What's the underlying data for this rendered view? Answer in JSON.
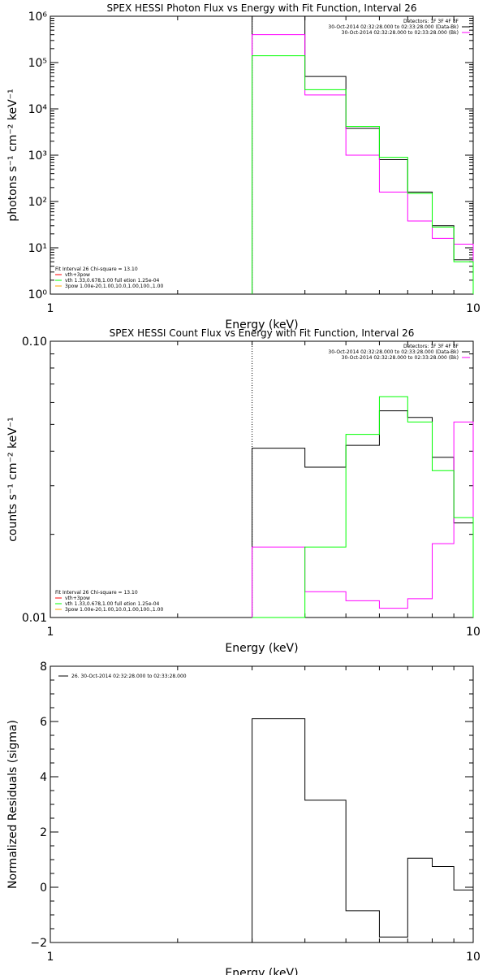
{
  "chart_data": [
    {
      "type": "line",
      "title": "SPEX HESSI Photon Flux vs Energy with Fit Function, Interval 26",
      "xlabel": "Energy (keV)",
      "ylabel": "photons s⁻¹ cm⁻² keV⁻¹",
      "xscale": "log",
      "yscale": "log",
      "xlim": [
        1,
        10
      ],
      "ylim": [
        1,
        1000000
      ],
      "xticks": [
        {
          "v": 1,
          "label": "1"
        },
        {
          "v": 10,
          "label": "10"
        }
      ],
      "yticks": [
        {
          "v": 1,
          "label": "10⁰"
        },
        {
          "v": 10,
          "label": "10¹"
        },
        {
          "v": 100,
          "label": "10²"
        },
        {
          "v": 1000,
          "label": "10³"
        },
        {
          "v": 10000,
          "label": "10⁴"
        },
        {
          "v": 100000,
          "label": "10⁵"
        },
        {
          "v": 1000000,
          "label": "10⁶"
        }
      ],
      "bin_edges": [
        3,
        4,
        5,
        6,
        7,
        8,
        9,
        10
      ],
      "vline": {
        "x": 3,
        "style": "dotted"
      },
      "series": [
        {
          "color": "#000000",
          "values": [
            1000000,
            50000,
            3800,
            800,
            160,
            30,
            5.5
          ]
        },
        {
          "color": "#ff00ff",
          "values": [
            400000,
            20000,
            1000,
            160,
            38,
            16,
            12
          ]
        },
        {
          "color": "#00ff00",
          "values": [
            140000,
            26000,
            4200,
            900,
            150,
            28,
            5
          ]
        }
      ],
      "legend_top": [
        {
          "text": "Detectors: 1F 3F 4F 8F",
          "color": ""
        },
        {
          "text": "30-Oct-2014 02:32:28.000 to 02:33:28.000 (Data-Bk)",
          "color": "#000000"
        },
        {
          "text": "30-Oct-2014 02:32:28.000 to 02:33:28.000 (Bk)",
          "color": "#ff00ff"
        }
      ],
      "legend_bottom": [
        {
          "text": "Fit Interval 26   Chi-square = 13.10",
          "color": ""
        },
        {
          "text": "vth+3pow",
          "color": "#ff0000"
        },
        {
          "text": "vth 1.33,0.678,1.00  full etion 1.25e-04",
          "color": "#00ff00"
        },
        {
          "text": "3pow 1.00e-20,1.00,10.0,1.00,100.,1.00",
          "color": "#ffa500"
        }
      ]
    },
    {
      "type": "line",
      "title": "SPEX HESSI Count Flux vs Energy with Fit Function, Interval 26",
      "xlabel": "Energy (keV)",
      "ylabel": "counts s⁻¹ cm⁻² keV⁻¹",
      "xscale": "log",
      "yscale": "log",
      "xlim": [
        1,
        10
      ],
      "ylim": [
        0.01,
        0.1
      ],
      "xticks": [
        {
          "v": 1,
          "label": "1"
        },
        {
          "v": 10,
          "label": "10"
        }
      ],
      "yticks": [
        {
          "v": 0.01,
          "label": "0.01"
        },
        {
          "v": 0.1,
          "label": "0.10"
        }
      ],
      "bin_edges": [
        3,
        4,
        5,
        6,
        7,
        8,
        9,
        10
      ],
      "vline": {
        "x": 3,
        "style": "dotted"
      },
      "series": [
        {
          "color": "#000000",
          "values": [
            0.041,
            0.035,
            0.042,
            0.056,
            0.053,
            0.038,
            0.022
          ]
        },
        {
          "color": "#ff00ff",
          "values": [
            0.018,
            0.0124,
            0.0115,
            0.0108,
            0.0117,
            0.0185,
            0.051
          ]
        },
        {
          "color": "#00ff00",
          "values": [
            0.0088,
            0.018,
            0.046,
            0.063,
            0.051,
            0.034,
            0.023
          ]
        }
      ],
      "legend_top": [
        {
          "text": "Detectors: 1F 3F 4F 8F",
          "color": ""
        },
        {
          "text": "30-Oct-2014 02:32:28.000 to 02:33:28.000 (Data-Bk)",
          "color": "#000000"
        },
        {
          "text": "30-Oct-2014 02:32:28.000 to 02:33:28.000 (Bk)",
          "color": "#ff00ff"
        }
      ],
      "legend_bottom": [
        {
          "text": "Fit Interval 26   Chi-square = 13.10",
          "color": ""
        },
        {
          "text": "vth+3pow",
          "color": "#ff0000"
        },
        {
          "text": "vth 1.33,0.678,1.00  full etion 1.25e-04",
          "color": "#00ff00"
        },
        {
          "text": "3pow 1.00e-20,1.00,10.0,1.00,100.,1.00",
          "color": "#ffa500"
        }
      ]
    },
    {
      "type": "line",
      "title": "",
      "xlabel": "Energy (keV)",
      "ylabel": "Normalized Residuals (sigma)",
      "xscale": "log",
      "yscale": "linear",
      "xlim": [
        1,
        10
      ],
      "ylim": [
        -2,
        8
      ],
      "xticks": [
        {
          "v": 1,
          "label": "1"
        },
        {
          "v": 10,
          "label": "10"
        }
      ],
      "yticks": [
        {
          "v": -2,
          "label": "−2"
        },
        {
          "v": 0,
          "label": "0"
        },
        {
          "v": 2,
          "label": "2"
        },
        {
          "v": 4,
          "label": "4"
        },
        {
          "v": 6,
          "label": "6"
        },
        {
          "v": 8,
          "label": "8"
        }
      ],
      "bin_edges": [
        3,
        4,
        5,
        6,
        7,
        8,
        9,
        10
      ],
      "vline": null,
      "series": [
        {
          "color": "#000000",
          "values": [
            6.1,
            3.15,
            -0.85,
            -1.8,
            1.05,
            0.75,
            -0.1
          ]
        }
      ],
      "legend_top": [
        {
          "text": "26. 30-Oct-2014 02:32:28.000 to 02:33:28.000",
          "color": "#000000"
        }
      ],
      "legend_bottom": []
    }
  ]
}
